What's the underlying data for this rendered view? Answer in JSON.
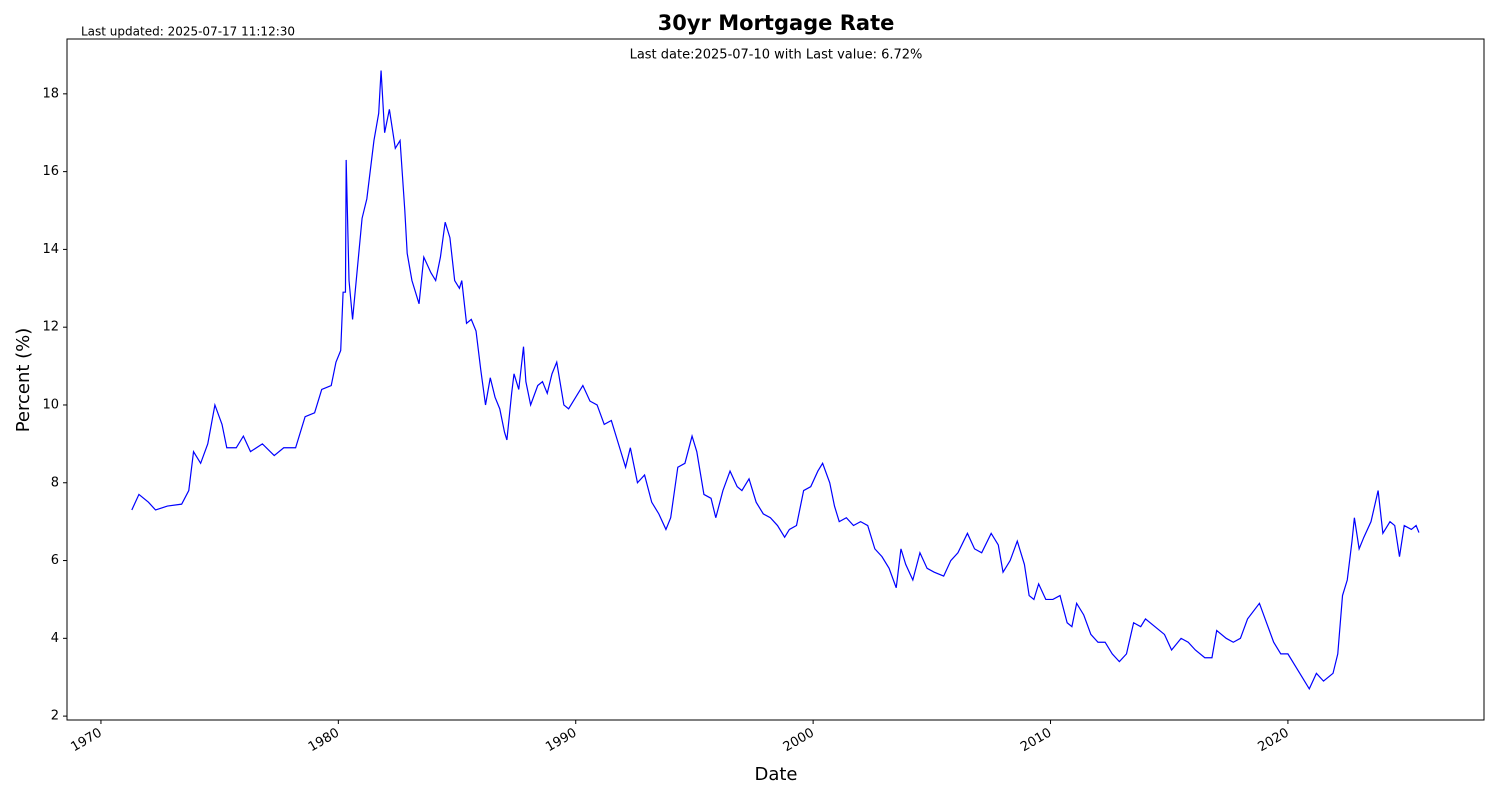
{
  "chart_data": {
    "type": "line",
    "title": "30yr Mortgage Rate",
    "subtitle": "Last date:2025-07-10 with Last value: 6.72%",
    "annotation": "Last updated: 2025-07-17 11:12:30",
    "xlabel": "Date",
    "ylabel": "Percent (%)",
    "xlim": [
      1968.57,
      2028.26
    ],
    "ylim": [
      1.9,
      19.41
    ],
    "xticks": [
      1970,
      1980,
      1990,
      2000,
      2010,
      2020
    ],
    "yticks": [
      2,
      4,
      6,
      8,
      10,
      12,
      14,
      16,
      18
    ],
    "grid": false,
    "series": [
      {
        "name": "30yr Mortgage Rate",
        "color": "#0000ff",
        "x": [
          1971.3,
          1971.6,
          1972.0,
          1972.3,
          1972.8,
          1973.4,
          1973.7,
          1973.9,
          1974.2,
          1974.5,
          1974.8,
          1975.1,
          1975.3,
          1975.7,
          1976.0,
          1976.3,
          1976.8,
          1977.3,
          1977.7,
          1978.2,
          1978.6,
          1979.0,
          1979.3,
          1979.7,
          1979.9,
          1980.1,
          1980.2,
          1980.3,
          1980.33,
          1980.45,
          1980.6,
          1980.8,
          1981.0,
          1981.2,
          1981.5,
          1981.7,
          1981.8,
          1981.95,
          1982.15,
          1982.4,
          1982.6,
          1982.8,
          1982.9,
          1983.1,
          1983.3,
          1983.4,
          1983.6,
          1983.9,
          1984.1,
          1984.3,
          1984.5,
          1984.7,
          1984.9,
          1985.1,
          1985.2,
          1985.4,
          1985.6,
          1985.8,
          1986.0,
          1986.2,
          1986.4,
          1986.6,
          1986.8,
          1987.0,
          1987.1,
          1987.3,
          1987.4,
          1987.6,
          1987.8,
          1987.9,
          1988.1,
          1988.4,
          1988.6,
          1988.8,
          1989.0,
          1989.2,
          1989.5,
          1989.7,
          1990.0,
          1990.3,
          1990.6,
          1990.9,
          1991.2,
          1991.5,
          1991.8,
          1992.1,
          1992.3,
          1992.6,
          1992.9,
          1993.2,
          1993.5,
          1993.8,
          1994.0,
          1994.3,
          1994.6,
          1994.9,
          1995.1,
          1995.4,
          1995.7,
          1995.9,
          1996.2,
          1996.5,
          1996.8,
          1997.0,
          1997.3,
          1997.6,
          1997.9,
          1998.2,
          1998.5,
          1998.8,
          1999.0,
          1999.3,
          1999.6,
          1999.9,
          2000.2,
          2000.4,
          2000.7,
          2000.9,
          2001.1,
          2001.4,
          2001.7,
          2002.0,
          2002.3,
          2002.6,
          2002.9,
          2003.2,
          2003.5,
          2003.7,
          2003.9,
          2004.2,
          2004.5,
          2004.8,
          2005.1,
          2005.5,
          2005.8,
          2006.1,
          2006.5,
          2006.8,
          2007.1,
          2007.5,
          2007.8,
          2008.0,
          2008.3,
          2008.6,
          2008.9,
          2009.1,
          2009.3,
          2009.5,
          2009.8,
          2010.1,
          2010.4,
          2010.7,
          2010.9,
          2011.1,
          2011.4,
          2011.7,
          2012.0,
          2012.3,
          2012.6,
          2012.9,
          2013.2,
          2013.5,
          2013.8,
          2014.0,
          2014.4,
          2014.8,
          2015.1,
          2015.5,
          2015.8,
          2016.1,
          2016.5,
          2016.8,
          2017.0,
          2017.4,
          2017.7,
          2018.0,
          2018.3,
          2018.8,
          2019.1,
          2019.4,
          2019.7,
          2020.0,
          2020.3,
          2020.6,
          2020.9,
          2021.2,
          2021.5,
          2021.9,
          2022.1,
          2022.3,
          2022.5,
          2022.7,
          2022.8,
          2023.0,
          2023.2,
          2023.5,
          2023.8,
          2024.0,
          2024.3,
          2024.5,
          2024.7,
          2024.9,
          2025.2,
          2025.4,
          2025.52
        ],
        "values": [
          7.3,
          7.7,
          7.5,
          7.3,
          7.4,
          7.45,
          7.8,
          8.8,
          8.5,
          9.0,
          10.0,
          9.5,
          8.9,
          8.9,
          9.2,
          8.8,
          9.0,
          8.7,
          8.9,
          8.9,
          9.7,
          9.8,
          10.4,
          10.5,
          11.1,
          11.4,
          12.9,
          12.9,
          16.3,
          13.2,
          12.2,
          13.5,
          14.8,
          15.3,
          16.8,
          17.5,
          18.6,
          17.0,
          17.6,
          16.6,
          16.8,
          15.0,
          13.9,
          13.2,
          12.8,
          12.6,
          13.8,
          13.4,
          13.2,
          13.8,
          14.7,
          14.3,
          13.2,
          13.0,
          13.2,
          12.1,
          12.2,
          11.9,
          10.9,
          10.0,
          10.7,
          10.2,
          9.9,
          9.3,
          9.1,
          10.3,
          10.8,
          10.4,
          11.5,
          10.6,
          10.0,
          10.5,
          10.6,
          10.3,
          10.8,
          11.1,
          10.0,
          9.9,
          10.2,
          10.5,
          10.1,
          10.0,
          9.5,
          9.6,
          9.0,
          8.4,
          8.9,
          8.0,
          8.2,
          7.5,
          7.2,
          6.8,
          7.1,
          8.4,
          8.5,
          9.2,
          8.8,
          7.7,
          7.6,
          7.1,
          7.8,
          8.3,
          7.9,
          7.8,
          8.1,
          7.5,
          7.2,
          7.1,
          6.9,
          6.6,
          6.8,
          6.9,
          7.8,
          7.9,
          8.3,
          8.5,
          8.0,
          7.4,
          7.0,
          7.1,
          6.9,
          7.0,
          6.9,
          6.3,
          6.1,
          5.8,
          5.3,
          6.3,
          5.9,
          5.5,
          6.2,
          5.8,
          5.7,
          5.6,
          6.0,
          6.2,
          6.7,
          6.3,
          6.2,
          6.7,
          6.4,
          5.7,
          6.0,
          6.5,
          5.9,
          5.1,
          5.0,
          5.4,
          5.0,
          5.0,
          5.1,
          4.4,
          4.3,
          4.9,
          4.6,
          4.1,
          3.9,
          3.9,
          3.6,
          3.4,
          3.6,
          4.4,
          4.3,
          4.5,
          4.3,
          4.1,
          3.7,
          4.0,
          3.9,
          3.7,
          3.5,
          3.5,
          4.2,
          4.0,
          3.9,
          4.0,
          4.5,
          4.9,
          4.4,
          3.9,
          3.6,
          3.6,
          3.3,
          3.0,
          2.7,
          3.1,
          2.9,
          3.1,
          3.6,
          5.1,
          5.5,
          6.5,
          7.1,
          6.3,
          6.6,
          7.0,
          7.8,
          6.7,
          7.0,
          6.9,
          6.1,
          6.9,
          6.8,
          6.9,
          6.72
        ]
      }
    ]
  }
}
